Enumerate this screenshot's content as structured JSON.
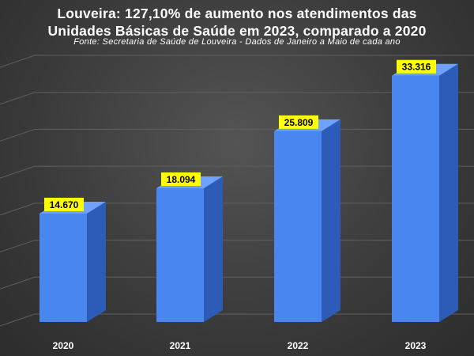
{
  "title_line1": "Louveira: 127,10% de aumento nos atendimentos das",
  "title_line2": "Unidades Básicas de Saúde em 2023, comparado a 2020",
  "subtitle": "Fonte: Secretaria de Saúde de Louveira - Dados de Janeiro a Maio de cada ano",
  "colors": {
    "bar_front": "#4a86f0",
    "bar_side": "#2c5bb8",
    "bar_top": "#6fa1ff",
    "label_bg": "#ffff00",
    "label_text": "#000000",
    "grid": "#5f5f5f"
  },
  "chart_data": {
    "type": "bar",
    "categories": [
      "2020",
      "2021",
      "2022",
      "2023"
    ],
    "values": [
      14670,
      18094,
      25809,
      33316
    ],
    "value_labels": [
      "14.670",
      "18.094",
      "25.809",
      "33.316"
    ],
    "ylim": [
      0,
      35000
    ],
    "grid": true,
    "xlabel": "",
    "ylabel": ""
  }
}
